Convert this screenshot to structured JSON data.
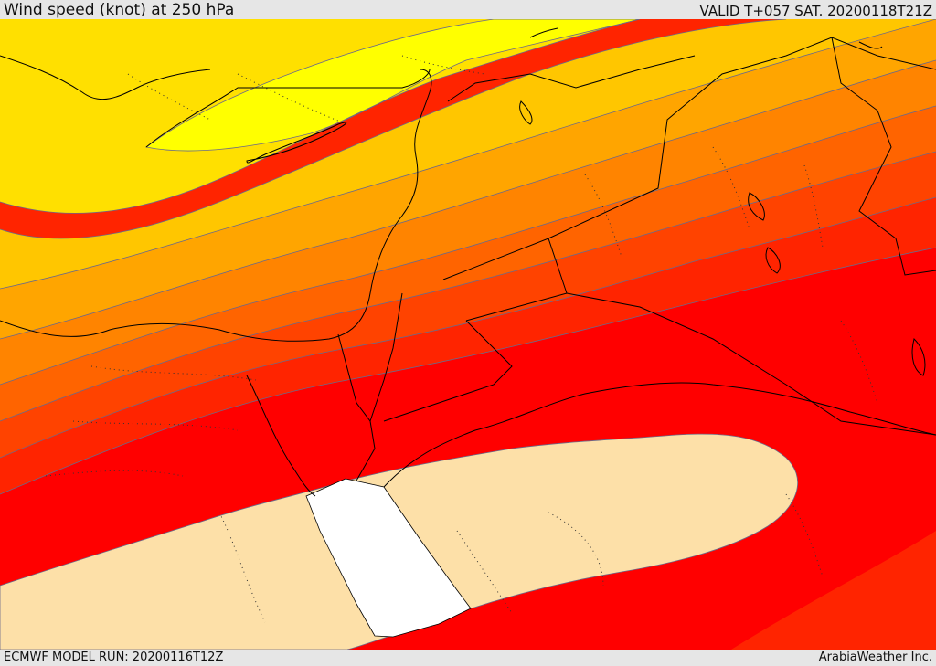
{
  "header": {
    "title": "Wind speed (knot) at 250 hPa",
    "valid": "VALID T+057 SAT. 20200118T21Z"
  },
  "footer": {
    "model_run": "ECMWF MODEL RUN: 20200116T12Z",
    "credit": "ArabiaWeather Inc."
  },
  "colors": {
    "band_1": "#ffff00",
    "band_2": "#ffe000",
    "band_3": "#ffc600",
    "band_4": "#ffa500",
    "band_5": "#ff8400",
    "band_6": "#ff6400",
    "band_7": "#ff4300",
    "band_8": "#ff2400",
    "band_9": "#ff0000",
    "calm_zone": "#fde0a8",
    "sea_zone": "#ffffff",
    "border": "#000000",
    "contour": "#6a6a8a"
  }
}
